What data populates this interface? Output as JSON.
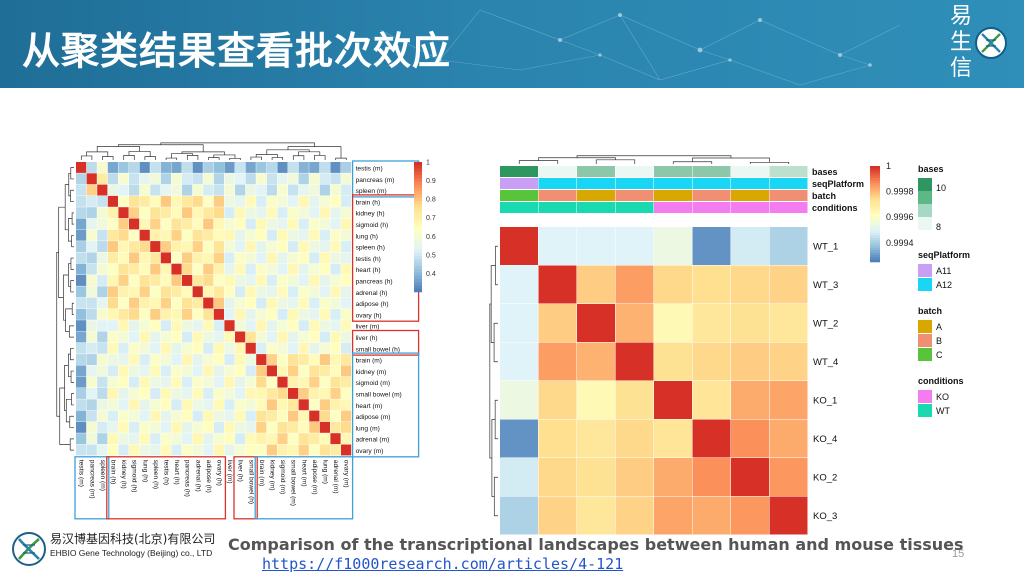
{
  "slide": {
    "title": "从聚类结果查看批次效应",
    "brand": [
      "易",
      "生",
      "信"
    ],
    "caption": "Comparison of the transcriptional landscapes between human and mouse tissues",
    "url": "https://f1000research.com/articles/4-121",
    "page_number": "15",
    "company_cn": "易汉博基因科技(北京)有限公司",
    "company_en": "EHBIO Gene Technology (Beijing) co., LTD"
  },
  "colors": {
    "header": "#2a83ad",
    "heat_high": "#d73027",
    "heat_mid": "#fee090",
    "heat_low": "#4575b4",
    "box_red": "#d9342b",
    "box_blue": "#3fa0d8"
  },
  "chart_data": [
    {
      "type": "heatmap",
      "labels": [
        "testis (m)",
        "pancreas (m)",
        "spleen (m)",
        "brain (h)",
        "kidney (h)",
        "sigmoid (h)",
        "lung (h)",
        "spleen (h)",
        "testis (h)",
        "heart (h)",
        "pancreas (h)",
        "adrenal (h)",
        "adipose (h)",
        "ovary (h)",
        "liver (m)",
        "liver (h)",
        "small bowel (h)",
        "brain (m)",
        "kidney (m)",
        "sigmoid (m)",
        "small bowel (m)",
        "heart (m)",
        "adipose (m)",
        "lung (m)",
        "adrenal (m)",
        "ovary (m)"
      ],
      "legend_ticks": [
        "1",
        "0.9",
        "0.8",
        "0.7",
        "0.6",
        "0.5",
        "0.4"
      ],
      "scale_range": [
        0.3,
        1
      ],
      "groups": [
        {
          "color": "blue",
          "rows": [
            0,
            2
          ]
        },
        {
          "color": "red",
          "rows": [
            3,
            13
          ]
        },
        {
          "color": "red",
          "rows": [
            15,
            16
          ]
        },
        {
          "color": "blue",
          "rows": [
            17,
            25
          ]
        }
      ]
    },
    {
      "type": "heatmap",
      "labels": [
        "WT_1",
        "WT_3",
        "WT_2",
        "WT_4",
        "KO_1",
        "KO_4",
        "KO_2",
        "KO_3"
      ],
      "values": [
        [
          1,
          0.9995,
          0.9995,
          0.9995,
          0.99955,
          0.9993,
          0.99948,
          0.99942
        ],
        [
          0.9995,
          1,
          0.99978,
          0.99985,
          0.99976,
          0.99975,
          0.99976,
          0.99977
        ],
        [
          0.9995,
          0.99978,
          1,
          0.99982,
          0.99965,
          0.99972,
          0.99974,
          0.99972
        ],
        [
          0.9995,
          0.99985,
          0.99982,
          1,
          0.99974,
          0.99976,
          0.99978,
          0.99977
        ],
        [
          0.99955,
          0.99976,
          0.99965,
          0.99974,
          1,
          0.99973,
          0.99983,
          0.99984
        ],
        [
          0.9993,
          0.99975,
          0.99972,
          0.99976,
          0.99973,
          1,
          0.99987,
          0.99983
        ],
        [
          0.99948,
          0.99976,
          0.99974,
          0.99978,
          0.99983,
          0.99987,
          1,
          0.99986
        ],
        [
          0.99942,
          0.99977,
          0.99972,
          0.99977,
          0.99984,
          0.99983,
          0.99986,
          1
        ]
      ],
      "scale_ticks": [
        "1",
        "0.9998",
        "0.9996",
        "0.9994"
      ],
      "scale_range": [
        0.99925,
        1
      ],
      "annotations": {
        "rows": [
          "bases",
          "seqPlatform",
          "batch",
          "conditions"
        ],
        "bases": [
          10,
          8,
          9,
          8,
          9,
          9,
          8,
          8.5
        ],
        "seqPlatform": [
          "A11",
          "A12",
          "A12",
          "A12",
          "A12",
          "A12",
          "A12",
          "A12"
        ],
        "batch": [
          "C",
          "B",
          "A",
          "B",
          "A",
          "B",
          "A",
          "B"
        ],
        "conditions": [
          "WT",
          "WT",
          "WT",
          "WT",
          "KO",
          "KO",
          "KO",
          "KO"
        ]
      },
      "legend": {
        "bases": {
          "title": "bases",
          "max": "10",
          "min": "8"
        },
        "seqPlatform": {
          "title": "seqPlatform",
          "items": [
            "A11",
            "A12"
          ],
          "colors": [
            "#c99ff5",
            "#1ad6f5"
          ]
        },
        "batch": {
          "title": "batch",
          "items": [
            "A",
            "B",
            "C"
          ],
          "colors": [
            "#d9a800",
            "#f08f72",
            "#58c43a"
          ]
        },
        "conditions": {
          "title": "conditions",
          "items": [
            "KO",
            "WT"
          ],
          "colors": [
            "#f27cf0",
            "#18d9b0"
          ]
        }
      }
    }
  ]
}
